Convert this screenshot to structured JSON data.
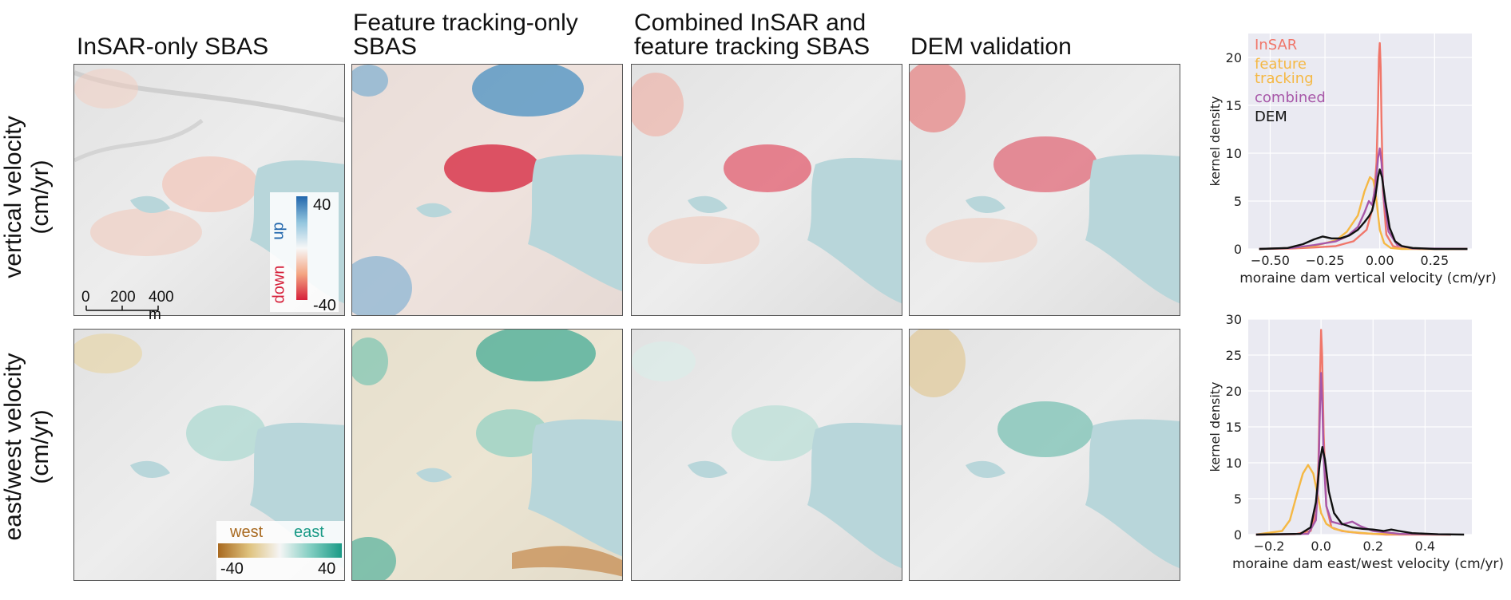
{
  "columns": {
    "c1": "InSAR-only SBAS",
    "c2_line1": "Feature tracking-only",
    "c2_line2": "SBAS",
    "c3_line1": "Combined InSAR and",
    "c3_line2": "feature tracking SBAS",
    "c4": "DEM validation"
  },
  "rows": {
    "r1_line1": "vertical velocity",
    "r1_line2": "(cm/yr)",
    "r2_line1": "east/west velocity",
    "r2_line2": "(cm/yr)"
  },
  "scalebar": {
    "t0": "0",
    "t1": "200",
    "t2": "400 m"
  },
  "colorbar_vertical": {
    "label_up": "up",
    "label_down": "down",
    "max": "40",
    "min": "-40",
    "color_up": "#2166ac",
    "color_down": "#d6203a"
  },
  "colorbar_ew": {
    "label_west": "west",
    "label_east": "east",
    "min": "-40",
    "max": "40",
    "color_west": "#a8691f",
    "color_east": "#1a9a86"
  },
  "colors": {
    "insar": "#f0766a",
    "feature": "#f5b844",
    "combined": "#a757a8",
    "dem": "#111111",
    "lake": "#b8d6da",
    "plot_bg": "#eaeaf2"
  },
  "chart_data": [
    {
      "type": "line",
      "ylabel": "kernel density",
      "xlabel": "moraine dam vertical velocity (cm/yr)",
      "xlim": [
        -0.6,
        0.42
      ],
      "ylim": [
        0,
        22.5
      ],
      "xticks": [
        -0.5,
        -0.25,
        0.0,
        0.25
      ],
      "xtick_labels": [
        "−0.50",
        "−0.25",
        "0.00",
        "0.25"
      ],
      "yticks": [
        0,
        5,
        10,
        15,
        20
      ],
      "legend": [
        "InSAR",
        "feature tracking",
        "combined",
        "DEM"
      ],
      "legend_placement": "top-left",
      "grid": true,
      "series": [
        {
          "name": "InSAR",
          "x": [
            -0.55,
            -0.4,
            -0.3,
            -0.2,
            -0.12,
            -0.06,
            -0.03,
            -0.015,
            -0.008,
            -0.004,
            0.0,
            0.004,
            0.008,
            0.015,
            0.03,
            0.06,
            0.1,
            0.2,
            0.4
          ],
          "values": [
            0,
            0.05,
            0.15,
            0.3,
            0.8,
            2.0,
            4.5,
            9.0,
            15.0,
            20.0,
            21.5,
            19.0,
            13.0,
            6.0,
            1.5,
            0.3,
            0.05,
            0,
            0
          ]
        },
        {
          "name": "feature",
          "x": [
            -0.55,
            -0.4,
            -0.3,
            -0.2,
            -0.15,
            -0.1,
            -0.07,
            -0.045,
            -0.03,
            -0.02,
            -0.01,
            0.0,
            0.02,
            0.05,
            0.1,
            0.2,
            0.4
          ],
          "values": [
            0,
            0.1,
            0.3,
            0.9,
            1.8,
            3.5,
            6.0,
            7.5,
            7.2,
            6.0,
            4.0,
            2.0,
            0.6,
            0.1,
            0,
            0,
            0
          ]
        },
        {
          "name": "combined",
          "x": [
            -0.55,
            -0.4,
            -0.3,
            -0.2,
            -0.15,
            -0.1,
            -0.07,
            -0.05,
            -0.035,
            -0.02,
            -0.008,
            0.0,
            0.008,
            0.02,
            0.04,
            0.08,
            0.15,
            0.4
          ],
          "values": [
            0,
            0.1,
            0.4,
            0.8,
            1.3,
            2.3,
            3.8,
            5.0,
            4.6,
            6.5,
            9.5,
            10.5,
            9.0,
            5.0,
            1.8,
            0.4,
            0.05,
            0
          ]
        },
        {
          "name": "DEM",
          "x": [
            -0.55,
            -0.42,
            -0.35,
            -0.3,
            -0.26,
            -0.22,
            -0.18,
            -0.14,
            -0.1,
            -0.07,
            -0.05,
            -0.035,
            -0.02,
            -0.008,
            0.0,
            0.01,
            0.025,
            0.045,
            0.07,
            0.1,
            0.15,
            0.25,
            0.4
          ],
          "values": [
            0,
            0.1,
            0.5,
            1.0,
            1.3,
            1.1,
            1.1,
            1.4,
            2.0,
            2.8,
            3.4,
            4.0,
            5.5,
            7.5,
            8.3,
            7.5,
            5.0,
            2.2,
            0.8,
            0.3,
            0.1,
            0,
            0
          ]
        }
      ]
    },
    {
      "type": "line",
      "ylabel": "kernel density",
      "xlabel": "moraine dam east/west velocity (cm/yr)",
      "xlim": [
        -0.28,
        0.58
      ],
      "ylim": [
        0,
        30
      ],
      "xticks": [
        -0.2,
        0.0,
        0.2,
        0.4
      ],
      "xtick_labels": [
        "−0.2",
        "0.0",
        "0.2",
        "0.4"
      ],
      "yticks": [
        0,
        5,
        10,
        15,
        20,
        25,
        30
      ],
      "grid": true,
      "series": [
        {
          "name": "InSAR",
          "x": [
            -0.25,
            -0.1,
            -0.04,
            -0.02,
            -0.01,
            -0.004,
            0.0,
            0.004,
            0.01,
            0.02,
            0.04,
            0.08,
            0.15,
            0.25,
            0.5
          ],
          "values": [
            0,
            0.05,
            0.5,
            3.0,
            10.0,
            22.0,
            28.5,
            25.0,
            14.0,
            4.0,
            1.0,
            0.5,
            0.2,
            0,
            0
          ]
        },
        {
          "name": "feature",
          "x": [
            -0.25,
            -0.15,
            -0.12,
            -0.09,
            -0.07,
            -0.05,
            -0.03,
            -0.01,
            0.0,
            0.02,
            0.05,
            0.1,
            0.2,
            0.5
          ],
          "values": [
            0,
            0.5,
            2.0,
            6.0,
            8.5,
            9.7,
            8.5,
            5.0,
            3.0,
            1.5,
            0.8,
            0.4,
            0.1,
            0
          ]
        },
        {
          "name": "combined",
          "x": [
            -0.25,
            -0.05,
            -0.02,
            -0.01,
            -0.004,
            0.0,
            0.004,
            0.01,
            0.02,
            0.04,
            0.08,
            0.12,
            0.15,
            0.2,
            0.3,
            0.5
          ],
          "values": [
            0,
            0.1,
            2.0,
            8.0,
            18.0,
            22.5,
            19.0,
            11.0,
            4.0,
            1.8,
            1.4,
            1.8,
            1.2,
            0.5,
            0.1,
            0
          ]
        },
        {
          "name": "DEM",
          "x": [
            -0.25,
            -0.08,
            -0.04,
            -0.02,
            -0.005,
            0.005,
            0.015,
            0.03,
            0.05,
            0.08,
            0.12,
            0.16,
            0.2,
            0.24,
            0.27,
            0.3,
            0.35,
            0.45,
            0.55
          ],
          "values": [
            0,
            0.1,
            1.0,
            4.5,
            10.0,
            12.2,
            10.5,
            6.0,
            3.0,
            1.5,
            1.0,
            0.8,
            0.7,
            0.5,
            0.7,
            0.5,
            0.2,
            0.05,
            0
          ]
        }
      ]
    }
  ]
}
